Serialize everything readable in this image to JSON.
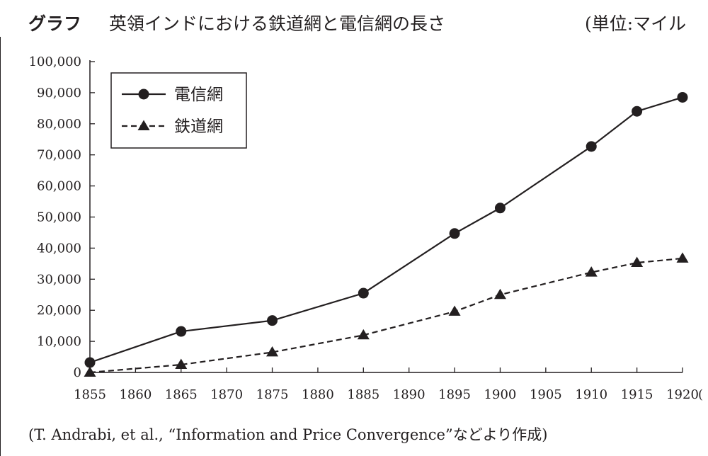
{
  "header": {
    "label": "グラフ",
    "title": "英領インドにおける鉄道網と電信網の長さ",
    "unit_note": "(単位:マイル"
  },
  "source_note": "(T. Andrabi, et al., “Information and Price Convergence”などより作成)",
  "chart_data": {
    "type": "line",
    "title": "英領インドにおける鉄道網と電信網の長さ",
    "x": [
      1855,
      1865,
      1875,
      1885,
      1895,
      1900,
      1910,
      1915,
      1920
    ],
    "xticks": [
      1855,
      1860,
      1865,
      1870,
      1875,
      1880,
      1885,
      1890,
      1895,
      1900,
      1905,
      1910,
      1915,
      1920
    ],
    "xtick_suffix": "(",
    "yticks": [
      0,
      10000,
      20000,
      30000,
      40000,
      50000,
      60000,
      70000,
      80000,
      90000,
      100000
    ],
    "xlim": [
      1855,
      1920
    ],
    "ylim": [
      0,
      100000
    ],
    "unit": "マイル",
    "grid": false,
    "legend_position": "top-left",
    "series": [
      {
        "name": "電信網",
        "line_style": "solid",
        "marker": "circle",
        "values": [
          3200,
          13200,
          16700,
          25500,
          44700,
          52900,
          72700,
          84000,
          88500
        ]
      },
      {
        "name": "鉄道網",
        "line_style": "dashed",
        "marker": "triangle",
        "values": [
          0,
          2500,
          6500,
          12000,
          19600,
          25000,
          32200,
          35300,
          36700
        ]
      }
    ]
  }
}
